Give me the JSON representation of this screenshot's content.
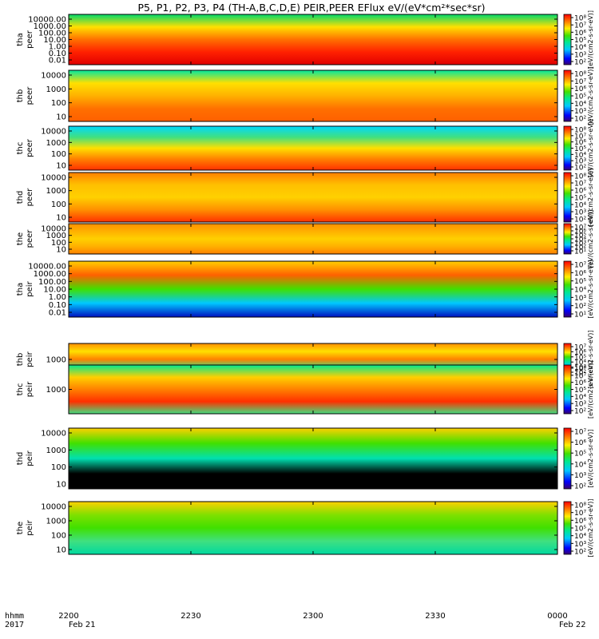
{
  "chart_data": {
    "type": "heatmap",
    "title": "P5, P1, P2, P3, P4 (TH-A,B,C,D,E) PEIR,PEER EFlux eV/(eV*cm²*sec*sr)",
    "x_axis": {
      "ticks": [
        "2200",
        "2230",
        "2300",
        "2330",
        "0000"
      ],
      "start_label": "Feb 21",
      "end_label": "Feb 22",
      "row_labels": [
        "hhmm",
        "2017"
      ]
    },
    "panels": [
      {
        "probe": "tha",
        "product": "peer",
        "yticks": [
          "10000.00",
          "1000.00",
          "100.00",
          "10.00",
          "1.00",
          "0.10",
          "0.01"
        ],
        "cbar_ticks": [
          "10⁸",
          "10⁷",
          "10⁶",
          "10⁵",
          "10⁴",
          "10³",
          "10²"
        ],
        "cbar_label": "[eV/(cm2-s-sr-eV)]"
      },
      {
        "probe": "thb",
        "product": "peer",
        "yticks": [
          "10000",
          "1000",
          "100",
          "10"
        ],
        "cbar_ticks": [
          "10⁸",
          "10⁷",
          "10⁶",
          "10⁵",
          "10⁴",
          "10³",
          "10²"
        ],
        "cbar_label": "[eV/(cm2-s-sr-eV)]"
      },
      {
        "probe": "thc",
        "product": "peer",
        "yticks": [
          "10000",
          "1000",
          "100",
          "10"
        ],
        "cbar_ticks": [
          "10⁸",
          "10⁷",
          "10⁶",
          "10⁵",
          "10⁴",
          "10³",
          "10²"
        ],
        "cbar_label": "[eV/(cm2-s-sr-eV)]"
      },
      {
        "probe": "thd",
        "product": "peer",
        "yticks": [
          "10000",
          "1000",
          "100",
          "10"
        ],
        "cbar_ticks": [
          "10⁸",
          "10⁷",
          "10⁶",
          "10⁵",
          "10⁴",
          "10³",
          "10²"
        ],
        "cbar_label": "[eV/(cm2-s-sr-eV)]"
      },
      {
        "probe": "the",
        "product": "peer",
        "yticks": [
          "10000",
          "1000",
          "100",
          "10"
        ],
        "cbar_ticks": [
          "10⁷",
          "10⁶",
          "10⁵",
          "10⁴",
          "10³",
          "10²",
          "10¹"
        ],
        "cbar_label": "[eV/(cm2-s-sr-eV)]"
      },
      {
        "probe": "tha",
        "product": "peir",
        "yticks": [
          "10000.00",
          "1000.00",
          "100.00",
          "10.00",
          "1.00",
          "0.10",
          "0.01"
        ],
        "cbar_ticks": [
          "10⁷",
          "10⁶",
          "10⁵",
          "10⁴",
          "10³",
          "10²",
          "10¹"
        ],
        "cbar_label": "[eV/(cm2-s-sr-eV)]"
      },
      {
        "probe": "thb",
        "product": "peir",
        "yticks": [
          "1000"
        ],
        "cbar_ticks": [
          "10⁷",
          "10⁶",
          "10⁵",
          "10⁴",
          "10³",
          "10²"
        ],
        "cbar_label": "[eV/(cm2-s-sr-eV)]"
      },
      {
        "probe": "thc",
        "product": "peir",
        "yticks": [
          "1000"
        ],
        "cbar_ticks": [
          "10⁸",
          "10⁷",
          "10⁶",
          "10⁵",
          "10⁴",
          "10³",
          "10²"
        ],
        "cbar_label": "[eV/(cm2-s-sr-eV)]"
      },
      {
        "probe": "thd",
        "product": "peir",
        "yticks": [
          "10000",
          "1000",
          "100",
          "10"
        ],
        "cbar_ticks": [
          "10⁷",
          "10⁶",
          "10⁵",
          "10⁴",
          "10³",
          "10²"
        ],
        "cbar_label": "[eV/(cm2-s-sr-eV)]"
      },
      {
        "probe": "the",
        "product": "peir",
        "yticks": [
          "10000",
          "1000",
          "100",
          "10"
        ],
        "cbar_ticks": [
          "10⁸",
          "10⁷",
          "10⁶",
          "10⁵",
          "10⁴",
          "10³",
          "10²"
        ],
        "cbar_label": "[eV/(cm2-s-sr-eV)]"
      }
    ]
  }
}
